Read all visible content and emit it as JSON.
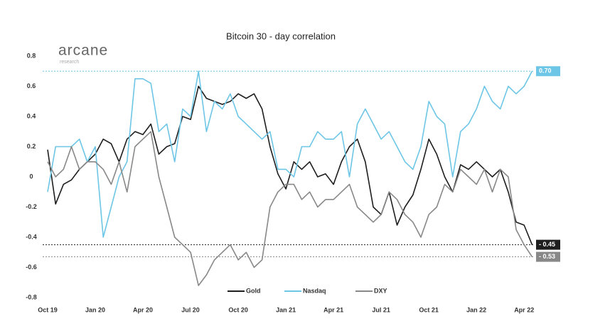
{
  "chart_data": {
    "type": "line",
    "title": "Bitcoin 30 - day correlation",
    "logo": {
      "name": "arcane",
      "tagline": "research"
    },
    "categories": [
      "Oct 19",
      null,
      null,
      null,
      null,
      null,
      "Jan 20",
      null,
      null,
      null,
      null,
      null,
      "Apr 20",
      null,
      null,
      null,
      null,
      null,
      "Jul 20",
      null,
      null,
      null,
      null,
      null,
      "Oct 20",
      null,
      null,
      null,
      null,
      null,
      "Jan 21",
      null,
      null,
      null,
      null,
      null,
      "Apr 21",
      null,
      null,
      null,
      null,
      null,
      "Jul 21",
      null,
      null,
      null,
      null,
      null,
      "Oct 21",
      null,
      null,
      null,
      null,
      null,
      "Jan 22",
      null,
      null,
      null,
      null,
      null,
      "Apr 22",
      null
    ],
    "ylim": [
      -0.8,
      0.8
    ],
    "yticks": [
      0.8,
      0.6,
      0.4,
      0.2,
      0,
      -0.2,
      -0.4,
      -0.6,
      -0.8
    ],
    "grid": false,
    "legend": "bottom",
    "series": [
      {
        "name": "Gold",
        "color": "#1e1e1e",
        "values": [
          0.18,
          -0.18,
          -0.05,
          -0.02,
          0.05,
          0.1,
          0.15,
          0.25,
          0.22,
          0.1,
          0.25,
          0.3,
          0.28,
          0.35,
          0.15,
          0.2,
          0.22,
          0.4,
          0.38,
          0.6,
          0.52,
          0.5,
          0.48,
          0.5,
          0.55,
          0.52,
          0.55,
          0.45,
          0.2,
          0.02,
          -0.08,
          0.1,
          0.05,
          0.1,
          0.0,
          0.02,
          -0.05,
          0.1,
          0.2,
          0.25,
          0.1,
          -0.2,
          -0.25,
          -0.1,
          -0.32,
          -0.2,
          -0.12,
          0.05,
          0.25,
          0.15,
          0.0,
          -0.1,
          0.08,
          0.05,
          0.1,
          0.05,
          0.0,
          0.05,
          -0.1,
          -0.3,
          -0.32,
          -0.45
        ]
      },
      {
        "name": "Nasdaq",
        "color": "#6ec6e6",
        "values": [
          -0.1,
          0.2,
          0.2,
          0.2,
          0.25,
          0.1,
          0.2,
          -0.4,
          -0.2,
          0.0,
          0.1,
          0.65,
          0.65,
          0.62,
          0.3,
          0.35,
          0.1,
          0.45,
          0.4,
          0.7,
          0.3,
          0.5,
          0.45,
          0.55,
          0.4,
          0.35,
          0.3,
          0.25,
          0.3,
          0.05,
          0.05,
          0.0,
          0.2,
          0.2,
          0.3,
          0.25,
          0.25,
          0.3,
          0.0,
          0.35,
          0.45,
          0.35,
          0.25,
          0.3,
          0.2,
          0.1,
          0.05,
          0.2,
          0.5,
          0.4,
          0.35,
          0.0,
          0.3,
          0.35,
          0.45,
          0.6,
          0.5,
          0.45,
          0.6,
          0.55,
          0.6,
          0.7
        ]
      },
      {
        "name": "DXY",
        "color": "#888888",
        "values": [
          0.1,
          0.0,
          0.05,
          0.2,
          0.05,
          0.1,
          0.1,
          0.05,
          -0.05,
          0.1,
          -0.1,
          0.2,
          0.25,
          0.3,
          0.0,
          -0.2,
          -0.4,
          -0.45,
          -0.5,
          -0.72,
          -0.65,
          -0.55,
          -0.5,
          -0.45,
          -0.55,
          -0.5,
          -0.6,
          -0.55,
          -0.2,
          -0.1,
          -0.05,
          -0.05,
          -0.15,
          -0.1,
          -0.2,
          -0.15,
          -0.15,
          -0.1,
          -0.05,
          -0.2,
          -0.25,
          -0.3,
          -0.25,
          -0.1,
          -0.15,
          -0.25,
          -0.3,
          -0.4,
          -0.25,
          -0.2,
          -0.05,
          -0.1,
          0.05,
          0.0,
          -0.05,
          0.05,
          -0.1,
          0.05,
          0.0,
          -0.35,
          -0.45,
          -0.53
        ]
      }
    ],
    "annotations": [
      {
        "value": 0.7,
        "label": "0.70",
        "color": "#6ec6e6"
      },
      {
        "value": -0.45,
        "label": "- 0.45",
        "color": "#1e1e1e"
      },
      {
        "value": -0.53,
        "label": "- 0.53",
        "color": "#888888"
      }
    ]
  }
}
